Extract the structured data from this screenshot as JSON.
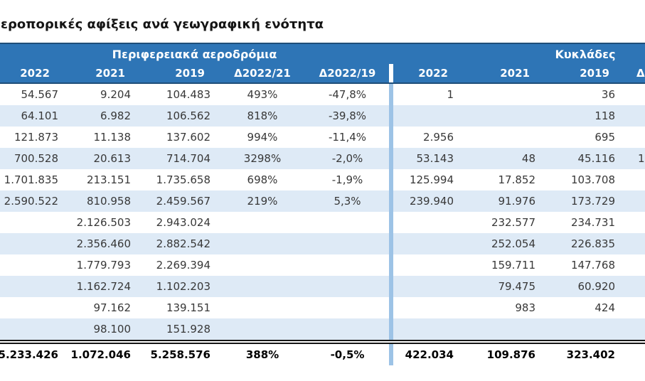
{
  "title": "εροπορικές αφίξεις ανά γεωγραφική ενότητα",
  "colors": {
    "header_fill": "#2E75B6",
    "header_edge": "#1F4E79",
    "band_fill": "#DEEAF6",
    "separator_fill": "#9DC3E6",
    "header_text": "#FFFFFF"
  },
  "table": {
    "groups": [
      {
        "label": "Περιφερειακά αεροδρόμια"
      },
      {
        "label": "Κυκλάδες"
      }
    ],
    "columns_left": [
      "2022",
      "2021",
      "2019",
      "Δ2022/21",
      "Δ2022/19"
    ],
    "columns_right": [
      "2022",
      "2021",
      "2019",
      "Δ"
    ],
    "rows": [
      {
        "left": [
          "54.567",
          "9.204",
          "104.483",
          "493%",
          "-47,8%"
        ],
        "right": [
          "1",
          "",
          "36",
          ""
        ]
      },
      {
        "left": [
          "64.101",
          "6.982",
          "106.562",
          "818%",
          "-39,8%"
        ],
        "right": [
          "",
          "",
          "118",
          ""
        ]
      },
      {
        "left": [
          "121.873",
          "11.138",
          "137.602",
          "994%",
          "-11,4%"
        ],
        "right": [
          "2.956",
          "",
          "695",
          ""
        ]
      },
      {
        "left": [
          "700.528",
          "20.613",
          "714.704",
          "3298%",
          "-2,0%"
        ],
        "right": [
          "53.143",
          "48",
          "45.116",
          "1"
        ]
      },
      {
        "left": [
          "1.701.835",
          "213.151",
          "1.735.658",
          "698%",
          "-1,9%"
        ],
        "right": [
          "125.994",
          "17.852",
          "103.708",
          ""
        ]
      },
      {
        "left": [
          "2.590.522",
          "810.958",
          "2.459.567",
          "219%",
          "5,3%"
        ],
        "right": [
          "239.940",
          "91.976",
          "173.729",
          ""
        ]
      },
      {
        "left": [
          "",
          "2.126.503",
          "2.943.024",
          "",
          ""
        ],
        "right": [
          "",
          "232.577",
          "234.731",
          ""
        ]
      },
      {
        "left": [
          "",
          "2.356.460",
          "2.882.542",
          "",
          ""
        ],
        "right": [
          "",
          "252.054",
          "226.835",
          ""
        ]
      },
      {
        "left": [
          "",
          "1.779.793",
          "2.269.394",
          "",
          ""
        ],
        "right": [
          "",
          "159.711",
          "147.768",
          ""
        ]
      },
      {
        "left": [
          "",
          "1.162.724",
          "1.102.203",
          "",
          ""
        ],
        "right": [
          "",
          "79.475",
          "60.920",
          ""
        ]
      },
      {
        "left": [
          "",
          "97.162",
          "139.151",
          "",
          ""
        ],
        "right": [
          "",
          "983",
          "424",
          ""
        ]
      },
      {
        "left": [
          "",
          "98.100",
          "151.928",
          "",
          ""
        ],
        "right": [
          "",
          "",
          "",
          ""
        ]
      }
    ],
    "totals": {
      "left": [
        "5.233.426",
        "1.072.046",
        "5.258.576",
        "388%",
        "-0,5%"
      ],
      "right": [
        "422.034",
        "109.876",
        "323.402",
        ""
      ]
    }
  }
}
